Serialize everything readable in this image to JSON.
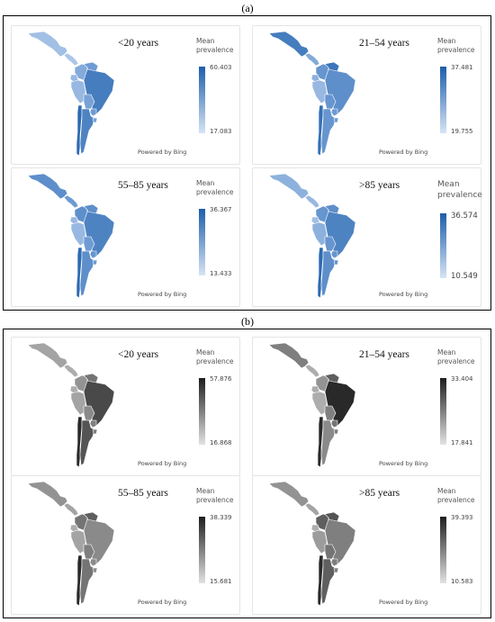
{
  "sections": [
    {
      "label": "(a)",
      "palette": {
        "low": "#d6e4f5",
        "mid": "#6e9bd3",
        "high": "#1d5ea9",
        "stroke": "#ffffff"
      },
      "panels": [
        {
          "age_label": "<20 years",
          "legend_title": "Mean prevalence",
          "legend_max": "60.403",
          "legend_min": "17.083",
          "powered": "Powered by Bing"
        },
        {
          "age_label": "21–54 years",
          "legend_title": "Mean prevalence",
          "legend_max": "37.481",
          "legend_min": "19.755",
          "powered": "Powered by Bing"
        },
        {
          "age_label": "55–85 years",
          "legend_title": "Mean prevalence",
          "legend_max": "36.367",
          "legend_min": "13.433",
          "powered": "Powered by Bing"
        },
        {
          "age_label": ">85 years",
          "legend_title": "Mean prevalence",
          "legend_max": "36.574",
          "legend_min": "10.549",
          "powered": "Powered by Bing"
        }
      ]
    },
    {
      "label": "(b)",
      "palette": {
        "low": "#e2e2e2",
        "mid": "#8a8a8a",
        "high": "#1e1e1e",
        "stroke": "#ffffff"
      },
      "panels": [
        {
          "age_label": "<20 years",
          "legend_title": "Mean prevalence",
          "legend_max": "57.876",
          "legend_min": "16.868",
          "powered": "Powered by Bing"
        },
        {
          "age_label": "21–54 years",
          "legend_title": "Mean prevalence",
          "legend_max": "33.404",
          "legend_min": "17.841",
          "powered": "Powered by Bing"
        },
        {
          "age_label": "55–85 years",
          "legend_title": "Mean prevalence",
          "legend_max": "38.339",
          "legend_min": "15.681",
          "powered": "Powered by Bing"
        },
        {
          "age_label": ">85 years",
          "legend_title": "Mean prevalence",
          "legend_max": "39.393",
          "legend_min": "10.583",
          "powered": "Powered by Bing"
        }
      ]
    }
  ]
}
